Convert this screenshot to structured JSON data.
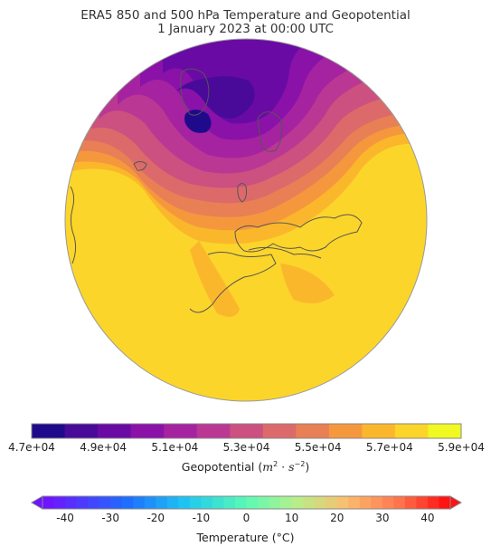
{
  "title": {
    "line1": "ERA5 850 and 500 hPa Temperature and Geopotential",
    "line2": "1 January 2023 at 00:00 UTC"
  },
  "geopotential_colorbar": {
    "label": "Geopotential (m² · s⁻²)",
    "label_main": "Geopotential (",
    "label_unit_m": "m",
    "label_unit_exp1": "2",
    "label_unit_dot": " · ",
    "label_unit_s": "s",
    "label_unit_exp2": "−2",
    "label_close": ")",
    "ticks": [
      "4.7e+04",
      "4.9e+04",
      "5.1e+04",
      "5.3e+04",
      "5.5e+04",
      "5.7e+04",
      "5.9e+04"
    ],
    "colors": [
      "#1f0a8c",
      "#4a0a99",
      "#6a0aa5",
      "#8a12a8",
      "#a523a0",
      "#ba3894",
      "#cc5080",
      "#dc6a6a",
      "#e97f55",
      "#f5983d",
      "#fbb72c",
      "#fcd52a",
      "#f0f921"
    ]
  },
  "temperature_colorbar": {
    "label_main": "Temperature (",
    "label_unit": "°C",
    "label_close": ")",
    "ticks": [
      "-40",
      "-30",
      "-20",
      "-10",
      "0",
      "10",
      "20",
      "30",
      "40"
    ],
    "range": [
      -45,
      45
    ],
    "extend": "both"
  }
}
